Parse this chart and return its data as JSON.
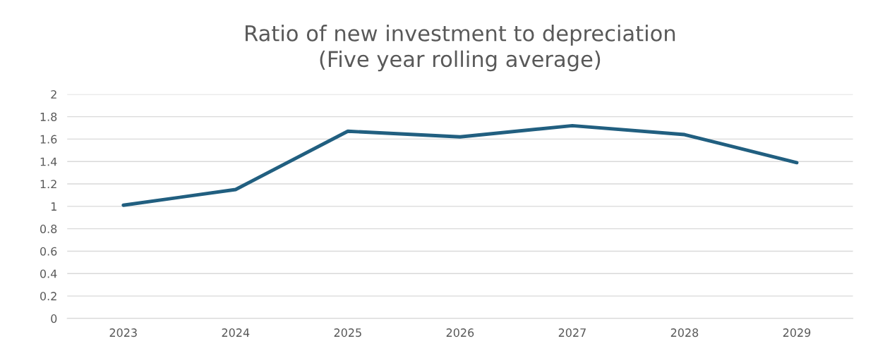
{
  "chart_data": {
    "type": "line",
    "title": "Ratio of new investment to depreciation\n(Five year rolling average)",
    "categories": [
      "2023",
      "2024",
      "2025",
      "2026",
      "2027",
      "2028",
      "2029"
    ],
    "series": [
      {
        "color": "#215f80",
        "values": [
          1.01,
          1.15,
          1.67,
          1.62,
          1.72,
          1.64,
          1.39
        ]
      }
    ],
    "ylim": [
      0,
      2
    ],
    "yticks": [
      0,
      {
        "value": 0.2,
        "label": "0.2"
      },
      {
        "value": 0.4,
        "label": "0.4"
      },
      {
        "value": 0.6,
        "label": "0.6"
      },
      {
        "value": 0.8,
        "label": "0.8"
      },
      1,
      {
        "value": 1.2,
        "label": "1.2"
      },
      {
        "value": 1.4,
        "label": "1.4"
      },
      {
        "value": 1.6,
        "label": "1.6"
      },
      {
        "value": 1.8,
        "label": "1.8"
      },
      2
    ],
    "grid": "y",
    "legend": false,
    "marker": "none",
    "line_style": "solid"
  }
}
